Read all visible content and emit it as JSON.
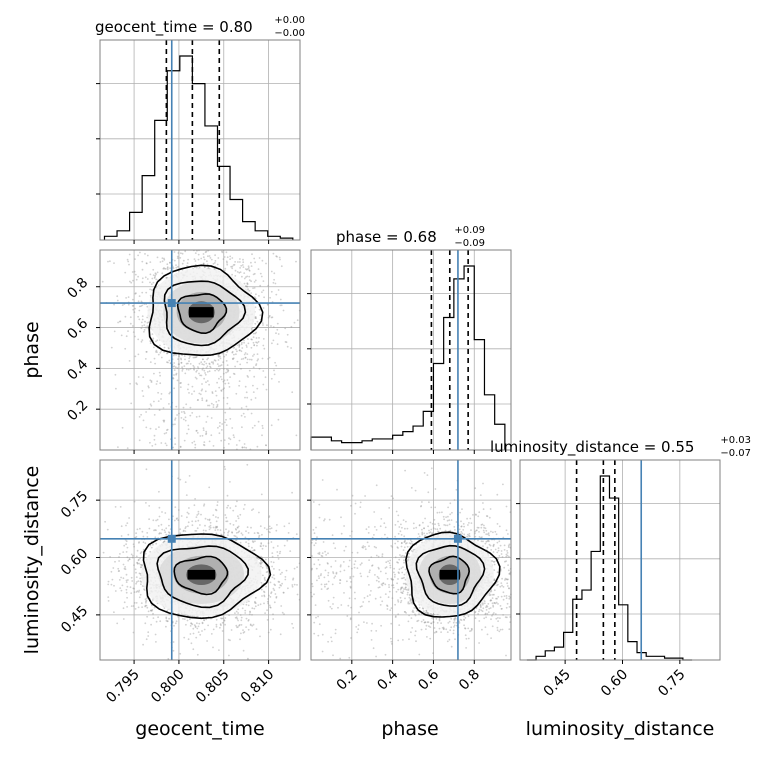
{
  "chart_data": {
    "type": "corner",
    "parameters": [
      "geocent_time",
      "phase",
      "luminosity_distance"
    ],
    "axis_labels": [
      "geocent_time",
      "phase",
      "luminosity_distance"
    ],
    "ranges": {
      "geocent_time": [
        0.7912,
        0.8135
      ],
      "phase": [
        0.0,
        0.98
      ],
      "luminosity_distance": [
        0.332,
        0.855
      ]
    },
    "truths": {
      "geocent_time": 0.7992,
      "phase": 0.72,
      "luminosity_distance": 0.649
    },
    "truth_color": "#4682b4",
    "grid": true,
    "titles": [
      {
        "param": "geocent_time",
        "label": "geocent_time = 0.80",
        "plus": "+0.00",
        "minus": "−0.00"
      },
      {
        "param": "phase",
        "label": "phase = 0.68",
        "plus": "+0.09",
        "minus": "−0.09"
      },
      {
        "param": "luminosity_distance",
        "label": "luminosity_distance = 0.55",
        "plus": "+0.03",
        "minus": "−0.07"
      }
    ],
    "ticks": {
      "geocent_time": [
        "0.795",
        "0.800",
        "0.805",
        "0.810"
      ],
      "phase": [
        "0.2",
        "0.4",
        "0.6",
        "0.8"
      ],
      "luminosity_distance": [
        "0.45",
        "0.60",
        "0.75"
      ]
    },
    "tick_values": {
      "geocent_time": [
        0.795,
        0.8,
        0.805,
        0.81
      ],
      "phase": [
        0.2,
        0.4,
        0.6,
        0.8
      ],
      "luminosity_distance": [
        0.45,
        0.6,
        0.75
      ]
    },
    "quantiles": {
      "geocent_time": [
        0.7986,
        0.8015,
        0.8045
      ],
      "phase": [
        0.59,
        0.68,
        0.77
      ],
      "luminosity_distance": [
        0.48,
        0.55,
        0.58
      ]
    },
    "histograms": {
      "geocent_time": {
        "edges": [
          0.7917,
          0.7931,
          0.7945,
          0.7959,
          0.7973,
          0.7987,
          0.8001,
          0.8015,
          0.8029,
          0.8043,
          0.8057,
          0.8071,
          0.8085,
          0.8099,
          0.8113,
          0.8127
        ],
        "counts": [
          0.02,
          0.05,
          0.15,
          0.35,
          0.65,
          0.92,
          1.0,
          0.85,
          0.62,
          0.4,
          0.22,
          0.1,
          0.05,
          0.02,
          0.01
        ]
      },
      "phase": {
        "edges": [
          0.0,
          0.05,
          0.1,
          0.15,
          0.2,
          0.25,
          0.3,
          0.35,
          0.4,
          0.45,
          0.5,
          0.55,
          0.6,
          0.65,
          0.7,
          0.75,
          0.8,
          0.85,
          0.9,
          0.95
        ],
        "counts": [
          0.07,
          0.07,
          0.05,
          0.04,
          0.04,
          0.05,
          0.06,
          0.06,
          0.08,
          0.1,
          0.13,
          0.21,
          0.47,
          0.72,
          0.93,
          1.0,
          0.6,
          0.3,
          0.14
        ]
      },
      "luminosity_distance": {
        "edges": [
          0.35,
          0.374,
          0.398,
          0.422,
          0.446,
          0.47,
          0.494,
          0.518,
          0.542,
          0.566,
          0.59,
          0.614,
          0.638,
          0.662,
          0.686,
          0.71,
          0.734,
          0.758,
          0.782
        ],
        "counts": [
          0.0,
          0.02,
          0.05,
          0.07,
          0.15,
          0.33,
          0.38,
          0.59,
          1.0,
          0.88,
          0.3,
          0.1,
          0.04,
          0.02,
          0.02,
          0.01,
          0.01,
          0.0
        ]
      }
    },
    "joint_peaks": {
      "phase|geocent_time": {
        "x": 0.8025,
        "y": 0.675,
        "sx": 0.0025,
        "sy": 0.09
      },
      "luminosity_distance|geocent_time": {
        "x": 0.8025,
        "y": 0.555,
        "sx": 0.0028,
        "sy": 0.045
      },
      "luminosity_distance|phase": {
        "x": 0.68,
        "y": 0.555,
        "sx": 0.09,
        "sy": 0.045
      }
    },
    "contour_levels": [
      0.39,
      0.86,
      0.99
    ]
  }
}
